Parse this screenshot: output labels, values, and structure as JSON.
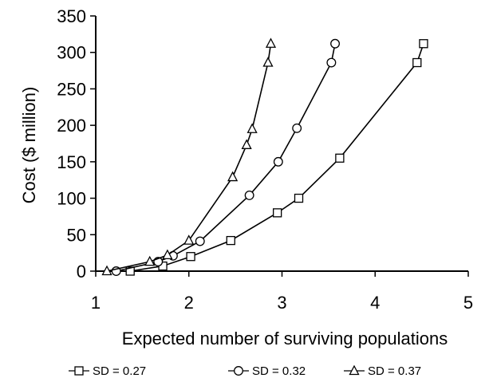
{
  "chart_data": {
    "type": "line",
    "title": "",
    "xlabel": "Expected number of surviving populations",
    "ylabel": "Cost ($ million)",
    "xlim": [
      1,
      5
    ],
    "ylim": [
      0,
      350
    ],
    "x_ticks": [
      "1",
      "2",
      "3",
      "4",
      "5"
    ],
    "y_ticks": [
      "0",
      "50",
      "100",
      "150",
      "200",
      "250",
      "300",
      "350"
    ],
    "grid": false,
    "legend_position": "bottom",
    "series": [
      {
        "name": "SD = 0.27",
        "marker": "square",
        "points": [
          [
            1.37,
            0
          ],
          [
            1.72,
            7
          ],
          [
            2.02,
            20
          ],
          [
            2.45,
            42
          ],
          [
            2.95,
            80
          ],
          [
            3.18,
            100
          ],
          [
            3.62,
            155
          ],
          [
            4.45,
            286
          ],
          [
            4.52,
            312
          ]
        ]
      },
      {
        "name": "SD = 0.32",
        "marker": "circle",
        "points": [
          [
            1.22,
            0
          ],
          [
            1.67,
            13
          ],
          [
            1.83,
            21
          ],
          [
            2.12,
            41
          ],
          [
            2.65,
            104
          ],
          [
            2.96,
            150
          ],
          [
            3.16,
            196
          ],
          [
            3.53,
            286
          ],
          [
            3.57,
            312
          ]
        ]
      },
      {
        "name": "SD = 0.37",
        "marker": "triangle",
        "points": [
          [
            1.12,
            0
          ],
          [
            1.58,
            13
          ],
          [
            1.77,
            22
          ],
          [
            2.0,
            42
          ],
          [
            2.47,
            129
          ],
          [
            2.62,
            173
          ],
          [
            2.68,
            195
          ],
          [
            2.85,
            286
          ],
          [
            2.88,
            312
          ]
        ]
      }
    ]
  }
}
